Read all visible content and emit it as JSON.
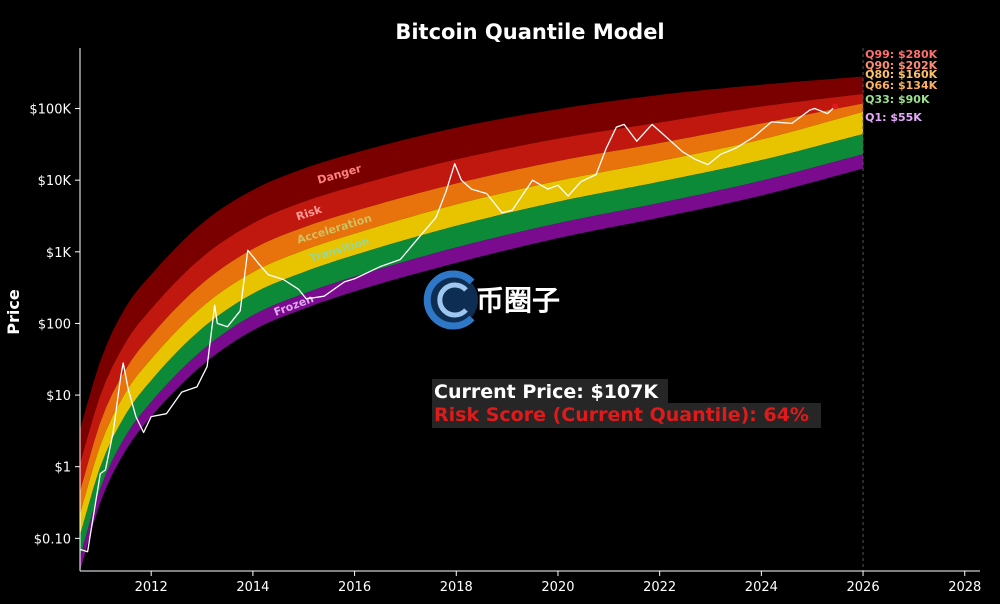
{
  "chart_data": {
    "type": "line",
    "title": "Bitcoin Quantile Model",
    "ylabel": "Price",
    "xlabel": "",
    "y_scale": "log",
    "xlim": [
      2010.6,
      2028.3
    ],
    "ylim": [
      0.035,
      700000
    ],
    "x_ticks": [
      2012,
      2014,
      2016,
      2018,
      2020,
      2022,
      2024,
      2026,
      2028
    ],
    "y_ticks": [
      {
        "value": 0.1,
        "label": "$0.10"
      },
      {
        "value": 1,
        "label": "$1"
      },
      {
        "value": 10,
        "label": "$10"
      },
      {
        "value": 100,
        "label": "$100"
      },
      {
        "value": 1000,
        "label": "$1K"
      },
      {
        "value": 10000,
        "label": "$10K"
      },
      {
        "value": 100000,
        "label": "$100K"
      }
    ],
    "grid": false,
    "projection_line_x": 2026,
    "band_boundary_points": [
      2010.6,
      2011,
      2011.5,
      2012,
      2013,
      2014,
      2015,
      2016,
      2018,
      2020,
      2022,
      2024,
      2026
    ],
    "bands": [
      {
        "name": "Danger",
        "color": "#7a0000",
        "label_color": "#ff8080",
        "upper": [
          3.3,
          30,
          170,
          480,
          2500,
          7300,
          14500,
          24000,
          54000,
          98000,
          155000,
          215000,
          280000
        ]
      },
      {
        "name": "Risk",
        "color": "#c0180e",
        "label_color": "#ff9a9a",
        "upper": [
          1.1,
          10,
          55,
          160,
          840,
          2500,
          5000,
          8300,
          19500,
          38000,
          64000,
          107000,
          160000
        ]
      },
      {
        "name": "Acceleration",
        "color": "#e8720c",
        "label_color": "#d0c060",
        "upper": [
          0.45,
          4.2,
          23,
          68,
          360,
          1100,
          2200,
          3700,
          9000,
          18500,
          33000,
          62000,
          118000
        ]
      },
      {
        "name": "Transition",
        "color": "#e8c400",
        "label_color": "#9cd68e",
        "upper": [
          0.22,
          2.0,
          11,
          32,
          170,
          520,
          1050,
          1800,
          4600,
          9800,
          18500,
          37000,
          90000
        ]
      },
      {
        "name": "",
        "color": "#0c8a38",
        "label_color": "",
        "upper": [
          0.11,
          1.0,
          5.4,
          16,
          85,
          260,
          520,
          900,
          2300,
          5000,
          9500,
          19000,
          44000
        ]
      },
      {
        "name": "Frozen",
        "color": "#7a0a8e",
        "label_color": "#e0a8f0",
        "upper": [
          0.055,
          0.5,
          2.7,
          8,
          42,
          130,
          260,
          450,
          1150,
          2500,
          4800,
          9800,
          23000
        ]
      }
    ],
    "floor": [
      0.035,
      0.32,
      1.7,
      5,
      26,
      80,
      160,
      280,
      700,
      1550,
      3000,
      6100,
      14500
    ],
    "quantile_labels": [
      {
        "text": "Q99: $280K",
        "color": "#ff7070",
        "value": 280000
      },
      {
        "text": "Q90: $202K",
        "color": "#ff8e70",
        "value": 202000
      },
      {
        "text": "Q80: $160K",
        "color": "#ffc26a",
        "value": 160000
      },
      {
        "text": "Q66: $134K",
        "color": "#ffb25e",
        "value": 134000
      },
      {
        "text": "Q33: $90K",
        "color": "#9be08a",
        "value": 90000
      },
      {
        "text": "Q1: $55K",
        "color": "#e8a8ff",
        "value": 55000
      }
    ],
    "series": [
      {
        "name": "",
        "color": "#ffffff",
        "x": [
          2010.6,
          2010.75,
          2010.9,
          2011.0,
          2011.1,
          2011.25,
          2011.4,
          2011.45,
          2011.55,
          2011.7,
          2011.85,
          2012.0,
          2012.3,
          2012.6,
          2012.9,
          2013.1,
          2013.25,
          2013.3,
          2013.5,
          2013.75,
          2013.9,
          2014.1,
          2014.3,
          2014.6,
          2014.9,
          2015.05,
          2015.4,
          2015.8,
          2016.0,
          2016.5,
          2016.9,
          2017.3,
          2017.6,
          2017.8,
          2017.97,
          2018.1,
          2018.3,
          2018.6,
          2018.9,
          2019.1,
          2019.5,
          2019.8,
          2020.0,
          2020.2,
          2020.45,
          2020.75,
          2020.95,
          2021.15,
          2021.3,
          2021.55,
          2021.85,
          2022.05,
          2022.45,
          2022.7,
          2022.95,
          2023.2,
          2023.5,
          2023.85,
          2024.2,
          2024.6,
          2024.95,
          2025.05,
          2025.3,
          2025.45
        ],
        "y": [
          0.07,
          0.065,
          0.3,
          0.8,
          0.9,
          3,
          18,
          28,
          12,
          5,
          3,
          5,
          5.5,
          11,
          13,
          25,
          180,
          100,
          90,
          150,
          1050,
          700,
          480,
          410,
          300,
          220,
          240,
          380,
          420,
          620,
          780,
          1700,
          3000,
          7000,
          17000,
          10000,
          7500,
          6500,
          3500,
          3800,
          10000,
          7500,
          8500,
          6000,
          9500,
          12000,
          28000,
          55000,
          60000,
          35000,
          60000,
          45000,
          25000,
          19500,
          16500,
          23000,
          28000,
          40000,
          65000,
          62000,
          95000,
          100000,
          85000,
          107000
        ]
      }
    ],
    "current_point": {
      "x": 2025.45,
      "y": 107000,
      "color": "#e01a1a"
    },
    "annotations": [
      {
        "text": "Current Price: $107K",
        "color": "#ffffff"
      },
      {
        "text": "Risk Score (Current Quantile): 64%",
        "color": "#e01a1a"
      }
    ]
  },
  "watermark": {
    "text": "币圈子"
  }
}
